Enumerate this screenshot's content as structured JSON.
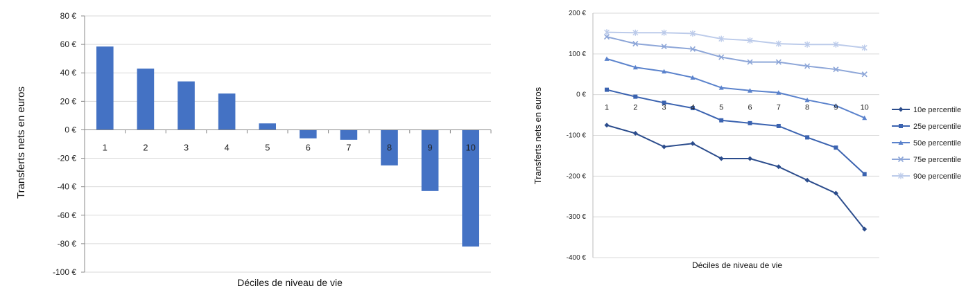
{
  "chart_data": [
    {
      "type": "bar",
      "categories": [
        "1",
        "2",
        "3",
        "4",
        "5",
        "6",
        "7",
        "8",
        "9",
        "10"
      ],
      "values": [
        58.5,
        43,
        34,
        25.5,
        4.5,
        -6,
        -7,
        -25,
        -43,
        -82
      ],
      "xlabel": "Déciles de niveau de vie",
      "ylabel": "Transferts nets en euros",
      "ylim": [
        -100,
        80
      ],
      "yticks": [
        80,
        60,
        40,
        20,
        0,
        -20,
        -40,
        -60,
        -80,
        -100
      ],
      "ytick_labels": [
        "80 €",
        "60 €",
        "40 €",
        "20 €",
        "0 €",
        "-20 €",
        "-40 €",
        "-60 €",
        "-80 €",
        "-100 €"
      ],
      "color": "#4472C4",
      "grid": true
    },
    {
      "type": "line",
      "x": [
        "1",
        "2",
        "3",
        "4",
        "5",
        "6",
        "7",
        "8",
        "9",
        "10"
      ],
      "series": [
        {
          "name": "10e percentile",
          "marker": "diamond",
          "color": "#2B4C8C",
          "values": [
            -75,
            -95,
            -128,
            -120,
            -157,
            -157,
            -177,
            -210,
            -242,
            -330
          ]
        },
        {
          "name": "25e percentile",
          "marker": "square",
          "color": "#3B63B0",
          "values": [
            12,
            -5,
            -20,
            -33,
            -63,
            -70,
            -77,
            -105,
            -130,
            -195
          ]
        },
        {
          "name": "50e percentile",
          "marker": "triangle",
          "color": "#5A82CC",
          "values": [
            88,
            67,
            57,
            42,
            17,
            10,
            5,
            -13,
            -27,
            -57
          ]
        },
        {
          "name": "75e percentile",
          "marker": "x",
          "color": "#8DA6D8",
          "values": [
            142,
            125,
            118,
            112,
            92,
            80,
            80,
            70,
            62,
            50
          ]
        },
        {
          "name": "90e percentile",
          "marker": "star",
          "color": "#BCCBEA",
          "values": [
            153,
            152,
            152,
            150,
            137,
            133,
            125,
            123,
            123,
            115
          ]
        }
      ],
      "xlabel": "Déciles de niveau de vie",
      "ylabel": "Transferts nets en euros",
      "ylim": [
        -400,
        200
      ],
      "yticks": [
        200,
        100,
        0,
        -100,
        -200,
        -300,
        -400
      ],
      "ytick_labels": [
        "200 €",
        "100 €",
        "0 €",
        "-100 €",
        "-200 €",
        "-300 €",
        "-400 €"
      ],
      "legend": "right",
      "grid": true
    }
  ]
}
